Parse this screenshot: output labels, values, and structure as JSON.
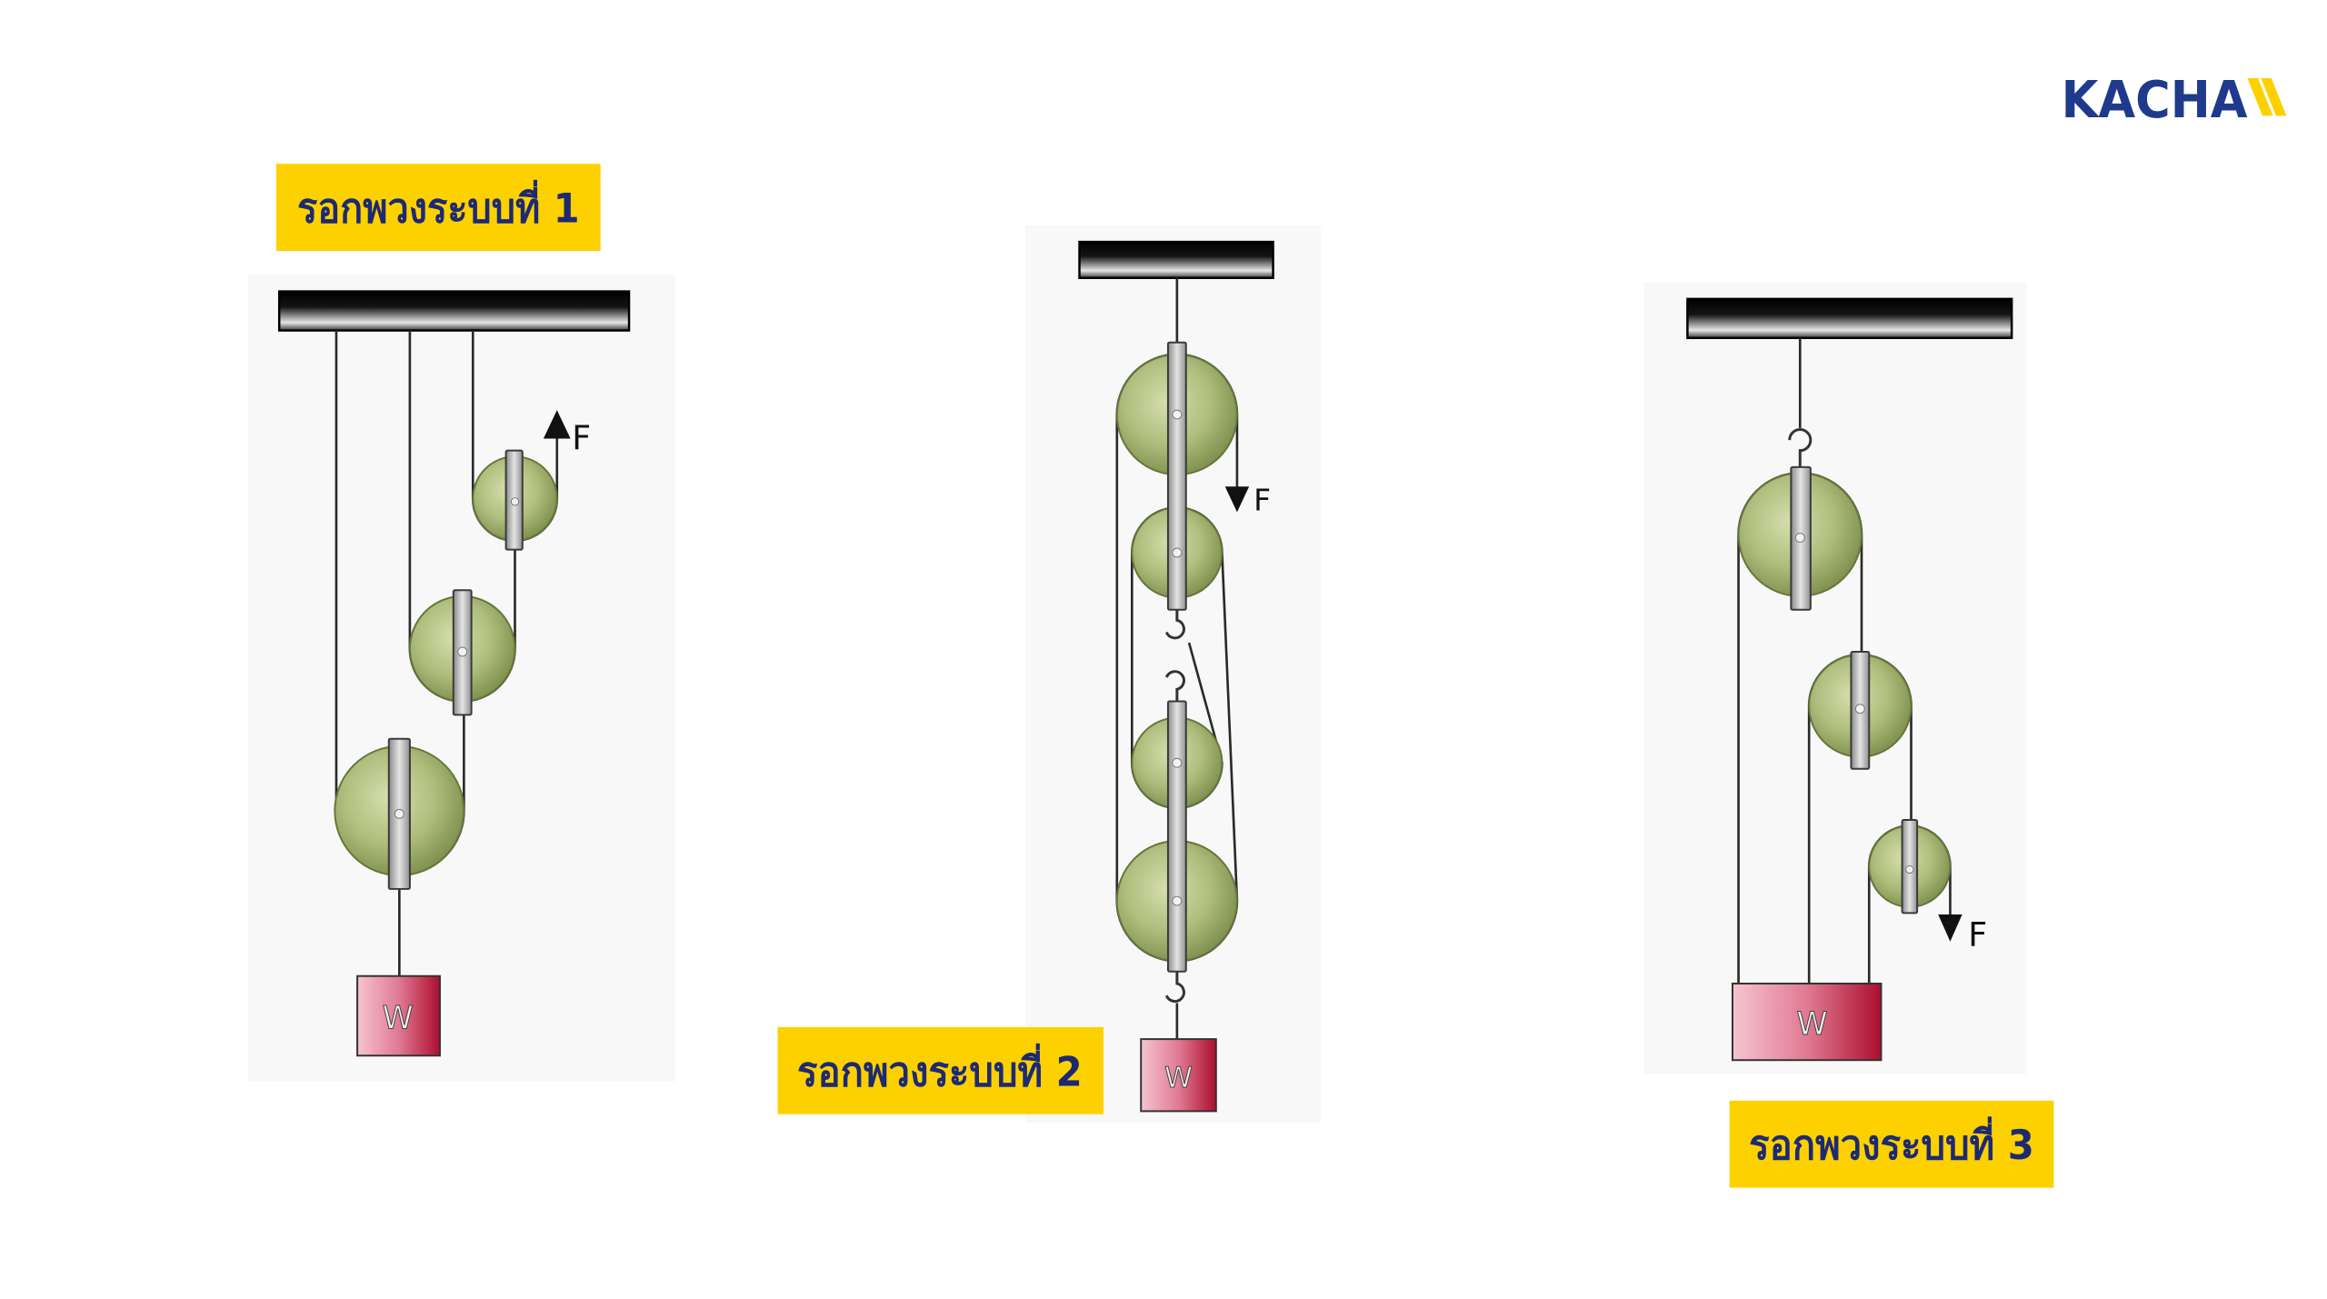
{
  "logo": {
    "text": "KACHA"
  },
  "diagrams": [
    {
      "label": "รอกพวงระบบที่ 1",
      "force_label": "F",
      "weight_label": "W"
    },
    {
      "label": "รอกพวงระบบที่ 2",
      "force_label": "F",
      "weight_label": "W"
    },
    {
      "label": "รอกพวงระบบที่ 3",
      "force_label": "F",
      "weight_label": "W"
    }
  ],
  "colors": {
    "brand": "#1f3a8c",
    "accent": "#fdd100",
    "label_text": "#1d2a72",
    "pulley": "#aebd7c",
    "weight": "#ad0f2f",
    "ceiling_bar": "#000000"
  }
}
